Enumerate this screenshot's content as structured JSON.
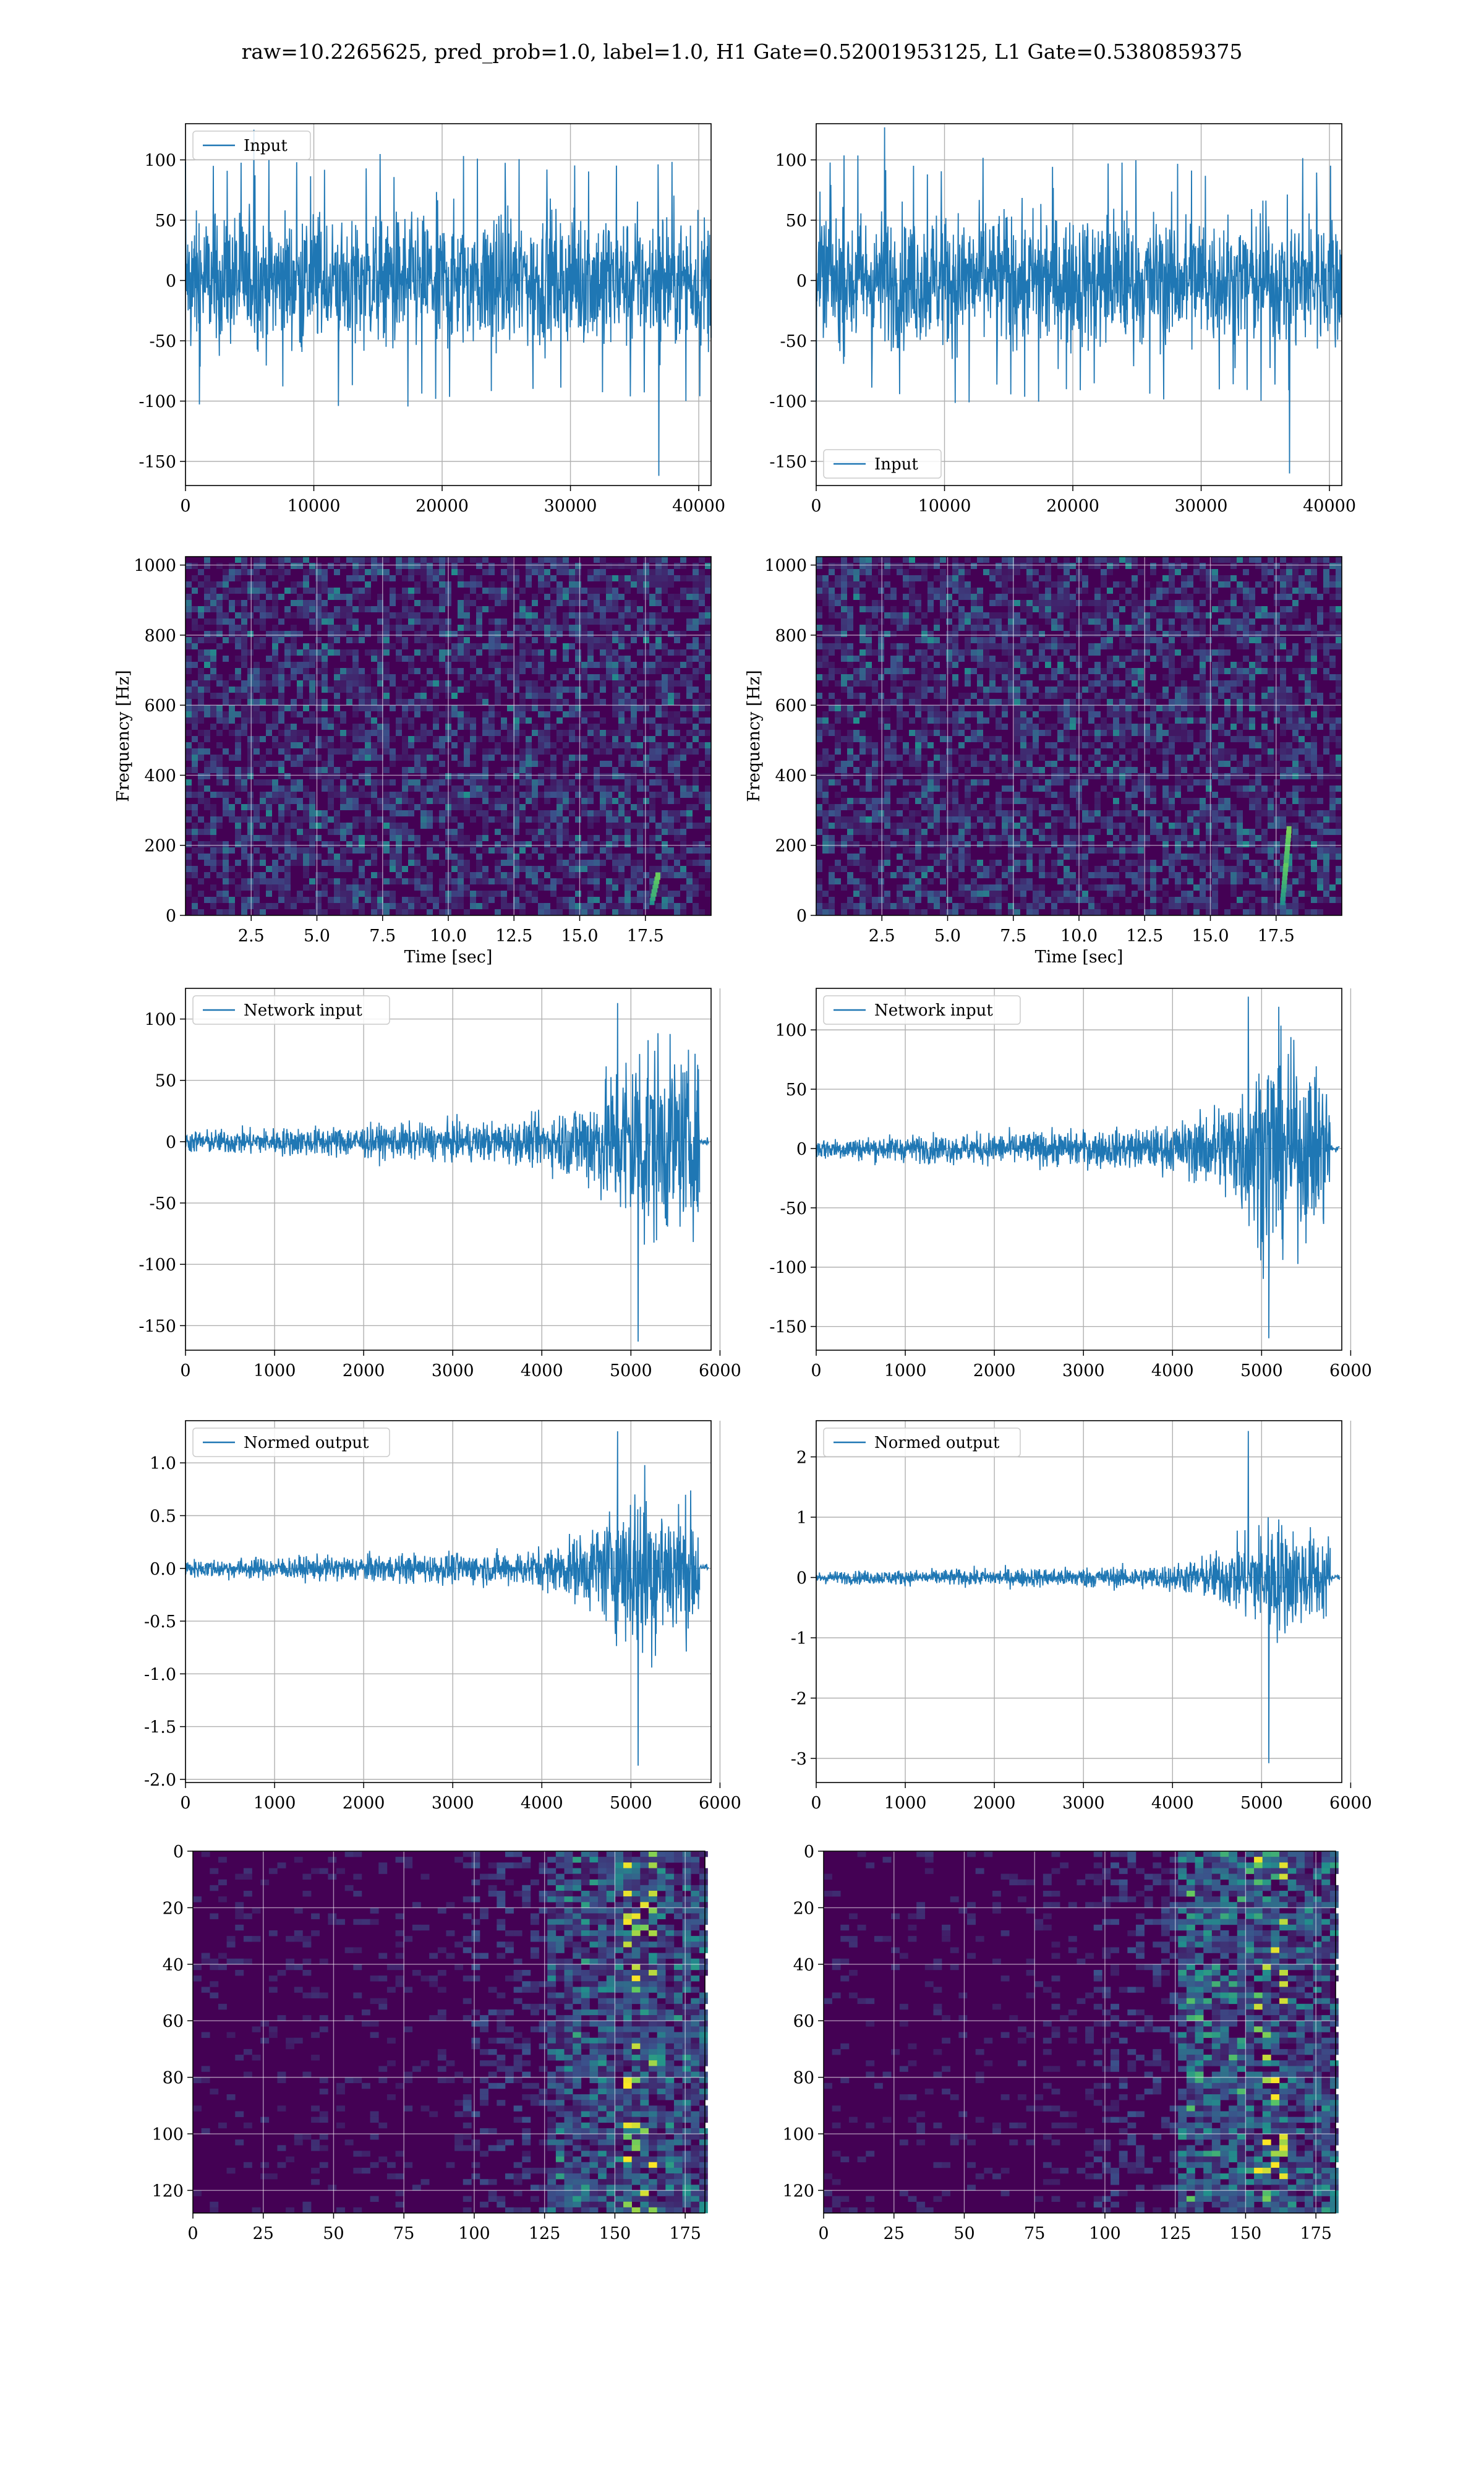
{
  "figure": {
    "suptitle": "raw=10.2265625, pred_prob=1.0, label=1.0, H1 Gate=0.52001953125, L1 Gate=0.5380859375"
  },
  "colors": {
    "line": "#1f77b4",
    "grid": "#b0b0b0",
    "viridis_dark": "#440154"
  },
  "chart_data": [
    {
      "id": "r1-left",
      "type": "line",
      "series": [
        {
          "name": "Input"
        }
      ],
      "legend": "upper-left",
      "xlim": [
        0,
        40960
      ],
      "ylim": [
        -170,
        130
      ],
      "xticks": [
        0,
        10000,
        20000,
        30000,
        40000
      ],
      "yticks": [
        -150,
        -100,
        -50,
        0,
        50,
        100
      ],
      "envelope": {
        "amplitude": 50,
        "max": 125,
        "min": -162
      }
    },
    {
      "id": "r1-right",
      "type": "line",
      "series": [
        {
          "name": "Input"
        }
      ],
      "legend": "lower-left",
      "xlim": [
        0,
        40960
      ],
      "ylim": [
        -170,
        130
      ],
      "xticks": [
        0,
        10000,
        20000,
        30000,
        40000
      ],
      "yticks": [
        -150,
        -100,
        -50,
        0,
        50,
        100
      ],
      "envelope": {
        "amplitude": 50,
        "max": 127,
        "min": -160
      }
    },
    {
      "id": "r2-left",
      "type": "heatmap",
      "xlabel": "Time [sec]",
      "ylabel": "Frequency [Hz]",
      "xlim": [
        0,
        20
      ],
      "ylim": [
        0,
        1024
      ],
      "xticks": [
        2.5,
        5.0,
        7.5,
        10.0,
        12.5,
        15.0,
        17.5
      ],
      "yticks": [
        0,
        200,
        400,
        600,
        800,
        1000
      ],
      "chirp": {
        "t": 18.0,
        "f_min": 40,
        "f_max": 120
      }
    },
    {
      "id": "r2-right",
      "type": "heatmap",
      "xlabel": "Time [sec]",
      "ylabel": "Frequency [Hz]",
      "xlim": [
        0,
        20
      ],
      "ylim": [
        0,
        1024
      ],
      "xticks": [
        2.5,
        5.0,
        7.5,
        10.0,
        12.5,
        15.0,
        17.5
      ],
      "yticks": [
        0,
        200,
        400,
        600,
        800,
        1000
      ],
      "chirp": {
        "t": 18.0,
        "f_min": 40,
        "f_max": 250
      }
    },
    {
      "id": "r3-left",
      "type": "line",
      "series": [
        {
          "name": "Network input"
        }
      ],
      "legend": "upper-left",
      "xlim": [
        0,
        5900
      ],
      "ylim": [
        -170,
        125
      ],
      "xticks": [
        0,
        1000,
        2000,
        3000,
        4000,
        5000,
        6000
      ],
      "yticks": [
        -150,
        -100,
        -50,
        0,
        50,
        100
      ],
      "envelope": {
        "amplitude": 18,
        "max": 113,
        "min": -163,
        "peak_x": 5170,
        "end_x": 5770
      }
    },
    {
      "id": "r3-right",
      "type": "line",
      "series": [
        {
          "name": "Network input"
        }
      ],
      "legend": "upper-left",
      "xlim": [
        0,
        5900
      ],
      "ylim": [
        -170,
        135
      ],
      "xticks": [
        0,
        1000,
        2000,
        3000,
        4000,
        5000,
        6000
      ],
      "yticks": [
        -150,
        -100,
        -50,
        0,
        50,
        100
      ],
      "envelope": {
        "amplitude": 18,
        "max": 128,
        "min": -160,
        "peak_x": 5170,
        "end_x": 5770
      }
    },
    {
      "id": "r4-left",
      "type": "line",
      "series": [
        {
          "name": "Normed output"
        }
      ],
      "legend": "upper-left",
      "xlim": [
        0,
        5900
      ],
      "ylim": [
        -2.03,
        1.4
      ],
      "xticks": [
        0,
        1000,
        2000,
        3000,
        4000,
        5000,
        6000
      ],
      "yticks": [
        -2.0,
        -1.5,
        -1.0,
        -0.5,
        0.0,
        0.5,
        1.0
      ],
      "envelope": {
        "amplitude": 0.17,
        "max": 1.3,
        "min": -1.87,
        "peak_x": 5170,
        "end_x": 5770
      }
    },
    {
      "id": "r4-right",
      "type": "line",
      "series": [
        {
          "name": "Normed output"
        }
      ],
      "legend": "upper-left",
      "xlim": [
        0,
        5900
      ],
      "ylim": [
        -3.4,
        2.6
      ],
      "xticks": [
        0,
        1000,
        2000,
        3000,
        4000,
        5000,
        6000
      ],
      "yticks": [
        -3,
        -2,
        -1,
        0,
        1,
        2
      ],
      "envelope": {
        "amplitude": 0.2,
        "max": 2.43,
        "min": -3.08,
        "peak_x": 5170,
        "end_x": 5770
      }
    },
    {
      "id": "r5-left",
      "type": "heatmap",
      "xlim": [
        0,
        182
      ],
      "ylim": [
        128,
        0
      ],
      "xticks": [
        0,
        25,
        50,
        75,
        100,
        125,
        150,
        175
      ],
      "yticks": [
        0,
        20,
        40,
        60,
        80,
        100,
        120
      ],
      "active_from_col": 125
    },
    {
      "id": "r5-right",
      "type": "heatmap",
      "xlim": [
        0,
        182
      ],
      "ylim": [
        128,
        0
      ],
      "xticks": [
        0,
        25,
        50,
        75,
        100,
        125,
        150,
        175
      ],
      "yticks": [
        0,
        20,
        40,
        60,
        80,
        100,
        120
      ],
      "active_from_col": 125
    }
  ]
}
